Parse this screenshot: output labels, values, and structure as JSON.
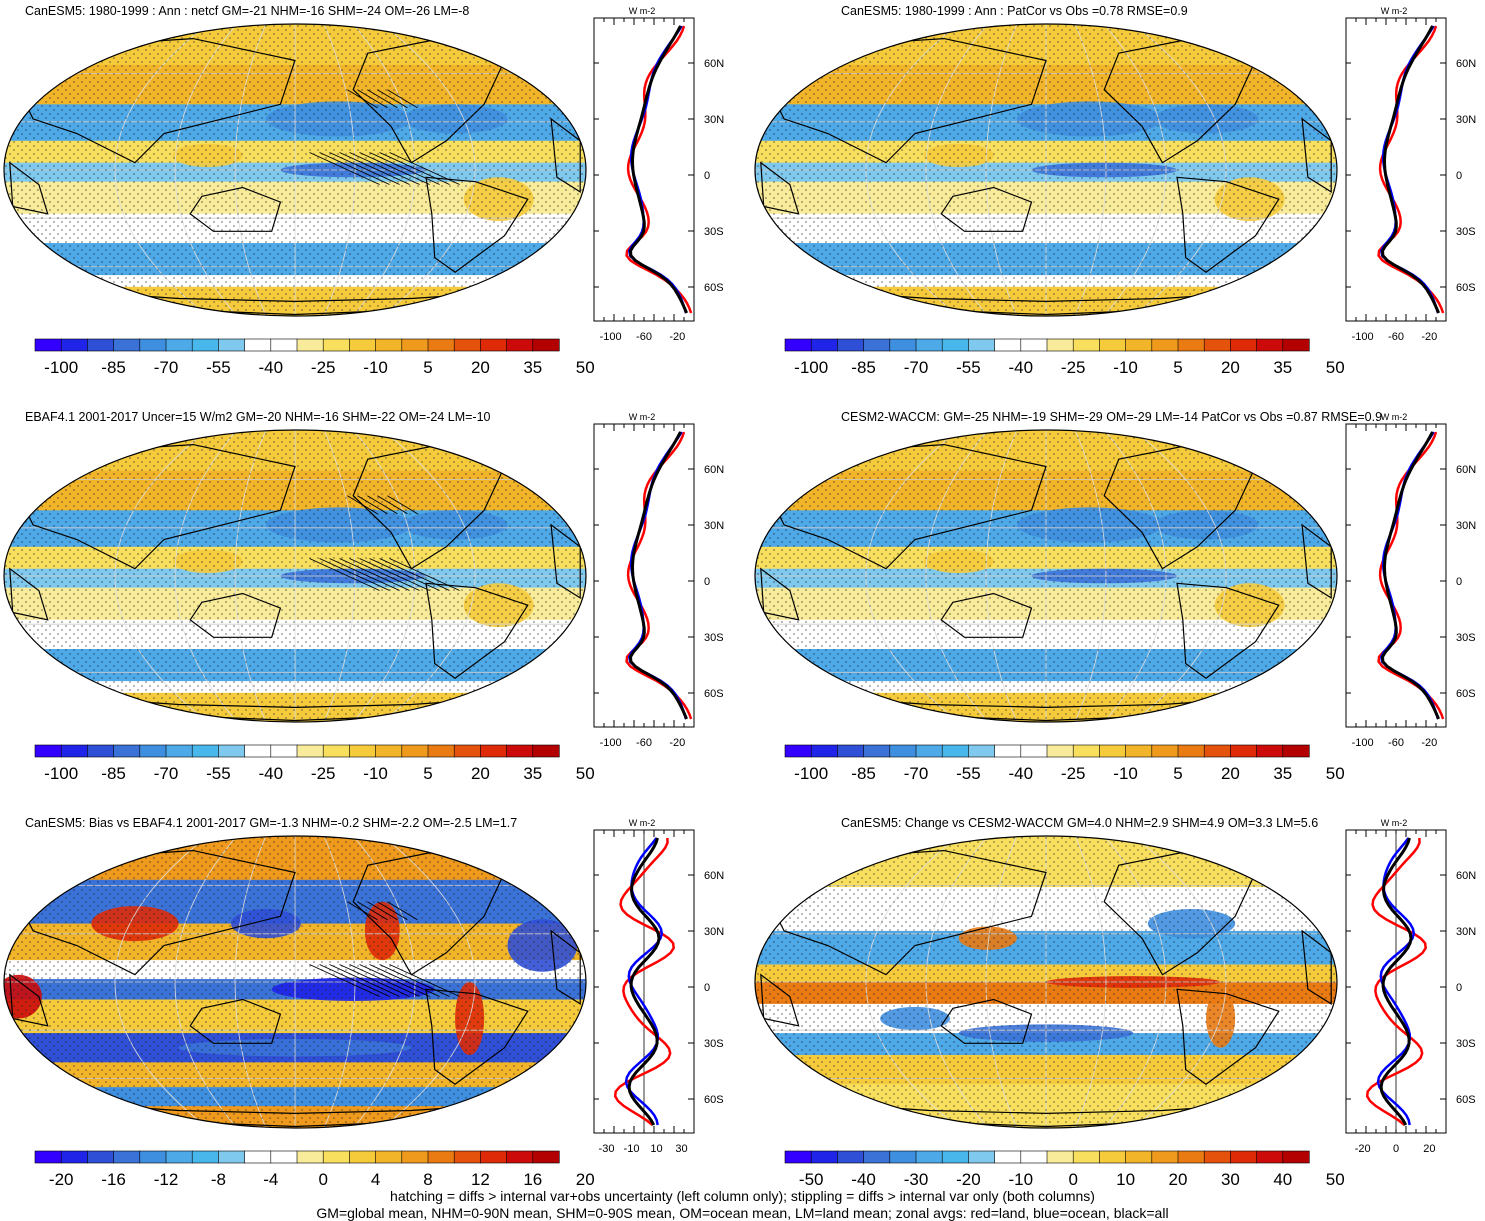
{
  "panels": [
    {
      "title": "CanESM5: 1980-1999 : Ann : netcf GM=-21 NHM=-16 SHM=-24 OM=-26 LM=-8",
      "kind": "clim",
      "hatch": true,
      "colorbar": {
        "ticks": [
          "-100",
          "-85",
          "-70",
          "-55",
          "-40",
          "-25",
          "-10",
          "5",
          "20",
          "35",
          "50"
        ]
      },
      "zonal": {
        "unit": "W m-2",
        "xticks": [
          "-100",
          "-60",
          "-20"
        ]
      }
    },
    {
      "title": "CanESM5: 1980-1999 : Ann : PatCor vs Obs =0.78 RMSE=0.9",
      "kind": "clim",
      "hatch": false,
      "colorbar": {
        "ticks": [
          "-100",
          "-85",
          "-70",
          "-55",
          "-40",
          "-25",
          "-10",
          "5",
          "20",
          "35",
          "50"
        ]
      },
      "zonal": {
        "unit": "W m-2",
        "xticks": [
          "-100",
          "-60",
          "-20"
        ]
      }
    },
    {
      "title": "EBAF4.1 2001-2017 Uncer=15 W/m2 GM=-20 NHM=-16 SHM=-22 OM=-24 LM=-10",
      "kind": "clim",
      "hatch": true,
      "colorbar": {
        "ticks": [
          "-100",
          "-85",
          "-70",
          "-55",
          "-40",
          "-25",
          "-10",
          "5",
          "20",
          "35",
          "50"
        ]
      },
      "zonal": {
        "unit": "W m-2",
        "xticks": [
          "-100",
          "-60",
          "-20"
        ]
      }
    },
    {
      "title": "CESM2-WACCM: GM=-25 NHM=-19 SHM=-29 OM=-29 LM=-14 PatCor vs Obs =0.87 RMSE=0.9",
      "kind": "clim",
      "hatch": false,
      "colorbar": {
        "ticks": [
          "-100",
          "-85",
          "-70",
          "-55",
          "-40",
          "-25",
          "-10",
          "5",
          "20",
          "35",
          "50"
        ]
      },
      "zonal": {
        "unit": "W m-2",
        "xticks": [
          "-100",
          "-60",
          "-20"
        ]
      }
    },
    {
      "title": "CanESM5: Bias vs EBAF4.1 2001-2017 GM=-1.3 NHM=-0.2 SHM=-2.2 OM=-2.5 LM=1.7",
      "kind": "bias",
      "hatch": true,
      "colorbar": {
        "ticks": [
          "-20",
          "-16",
          "-12",
          "-8",
          "-4",
          "0",
          "4",
          "8",
          "12",
          "16",
          "20"
        ]
      },
      "zonal": {
        "unit": "W m-2",
        "xticks": [
          "-30",
          "-10",
          "10",
          "30"
        ]
      }
    },
    {
      "title": "CanESM5: Change vs CESM2-WACCM GM=4.0 NHM=2.9 SHM=4.9 OM=3.3 LM=5.6",
      "kind": "change",
      "hatch": false,
      "colorbar": {
        "ticks": [
          "-50",
          "-40",
          "-30",
          "-20",
          "-10",
          "0",
          "10",
          "20",
          "30",
          "40",
          "50"
        ]
      },
      "zonal": {
        "unit": "W m-2",
        "xticks": [
          "-20",
          "0",
          "20"
        ]
      }
    }
  ],
  "lat_labels": [
    "60N",
    "30N",
    "0",
    "30S",
    "60S"
  ],
  "palette": [
    "#3300ff",
    "#1f24e8",
    "#2f4fd6",
    "#3a72d8",
    "#3f8fe0",
    "#4ea9e8",
    "#48b8ec",
    "#80c9ee",
    "#ffffff",
    "#ffffff",
    "#f8eb9a",
    "#f8df5e",
    "#f5cb3c",
    "#f2b52a",
    "#ef9a1c",
    "#ea7a12",
    "#e5520c",
    "#df2a08",
    "#cc0a0a",
    "#b30000"
  ],
  "zonal_colors": {
    "land": "#ff0000",
    "ocean": "#0000ff",
    "all": "#000000"
  },
  "footer": [
    "hatching = diffs > internal var+obs uncertainty (left column only); stippling = diffs > internal var only (both columns)",
    "GM=global mean, NHM=0-90N mean, SHM=0-90S mean, OM=ocean mean, LM=land mean; zonal avgs: red=land, blue=ocean, black=all"
  ]
}
